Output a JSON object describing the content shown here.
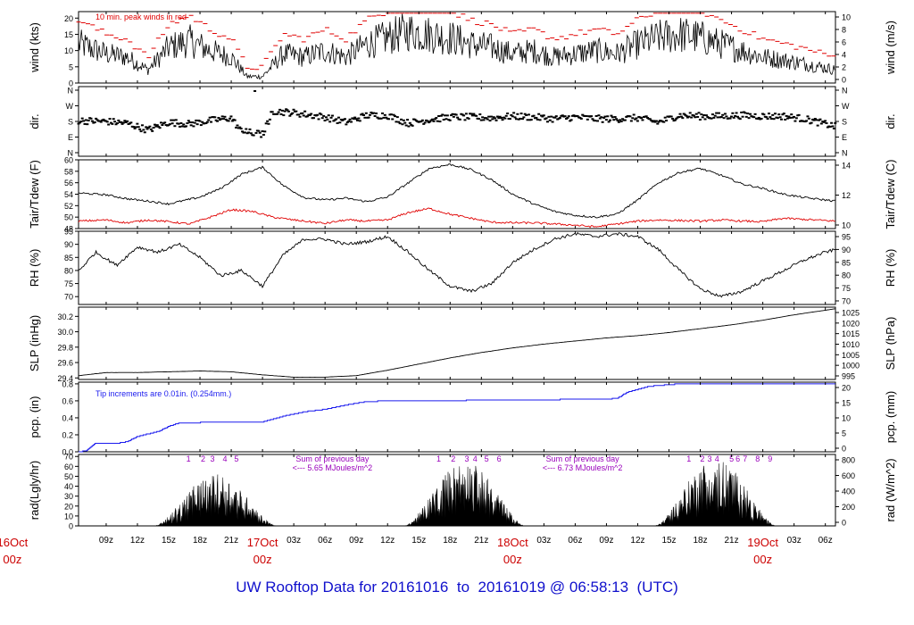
{
  "footer": {
    "prefix": "UW Rooftop Data for",
    "start": "20161016",
    "to": "to",
    "end": "20161019",
    "at": "@",
    "time": "06:58:13",
    "tz": "(UTC)"
  },
  "time_axis": {
    "hour_ticks": [
      "09z",
      "12z",
      "15z",
      "18z",
      "21z",
      "03z",
      "06z",
      "09z",
      "12z",
      "15z",
      "18z",
      "21z",
      "03z",
      "06z",
      "09z",
      "12z",
      "15z",
      "18z",
      "21z",
      "03z",
      "06z"
    ],
    "day_labels": [
      {
        "day": "16Oct",
        "hour": "00z"
      },
      {
        "day": "17Oct",
        "hour": "00z"
      },
      {
        "day": "18Oct",
        "hour": "00z"
      },
      {
        "day": "19Oct",
        "hour": "00z"
      }
    ],
    "x_start_hour": 6.35,
    "x_end_hour": 78.97
  },
  "chart_data": [
    {
      "type": "line",
      "name": "wind",
      "ylabel": "wind (kts)",
      "ylabel_right": "wind (m/s)",
      "ylim": [
        0,
        22
      ],
      "yticks": [
        0,
        5,
        10,
        15,
        20
      ],
      "right_ticks": [
        0,
        2,
        4,
        6,
        8,
        10
      ],
      "annotation": "10 min. peak winds in red",
      "colors": {
        "line": "#000000",
        "peak": "#e00000"
      },
      "x_hours": [
        6.4,
        9,
        11,
        13,
        15,
        17,
        19,
        21,
        22.5,
        24,
        26,
        28,
        30,
        32,
        34,
        36,
        38,
        40,
        42,
        44,
        46,
        48,
        50,
        52,
        54,
        56,
        58,
        60,
        62,
        64,
        66,
        68,
        70,
        72,
        74,
        76,
        79
      ],
      "values": [
        12,
        9,
        8,
        4,
        11,
        13,
        10,
        8,
        2,
        2,
        9,
        8,
        10,
        8,
        12,
        14,
        16,
        15,
        14,
        12,
        11,
        9,
        10,
        8,
        9,
        10,
        9,
        12,
        14,
        15,
        14,
        12,
        10,
        8,
        7,
        6,
        4
      ]
    },
    {
      "type": "scatter",
      "name": "dir",
      "ylabel": "dir.",
      "ylabel_right": "dir.",
      "ylim": [
        0,
        360
      ],
      "yticks": [
        "N",
        "W",
        "S",
        "E",
        "N"
      ],
      "right_ticks": [
        "N",
        "W",
        "S",
        "E",
        "N"
      ],
      "colors": {
        "points": "#000000"
      },
      "x_hours": [
        6.4,
        9,
        11,
        13,
        15,
        17,
        19,
        21,
        22,
        23,
        24,
        25,
        27,
        30,
        32,
        34,
        36,
        38,
        40,
        42,
        44,
        46,
        48,
        50,
        52,
        54,
        56,
        58,
        60,
        62,
        64,
        66,
        68,
        70,
        72,
        74,
        76,
        79
      ],
      "values": [
        185,
        180,
        170,
        130,
        175,
        165,
        185,
        200,
        120,
        115,
        105,
        240,
        230,
        205,
        175,
        215,
        215,
        170,
        190,
        205,
        205,
        200,
        210,
        205,
        195,
        205,
        195,
        195,
        200,
        175,
        215,
        210,
        210,
        215,
        210,
        210,
        195,
        150
      ]
    },
    {
      "type": "line",
      "name": "temp",
      "ylabel": "Tair/Tdew (F)",
      "ylabel_right": "Tair/Tdew (C)",
      "ylim": [
        48,
        60
      ],
      "yticks": [
        48,
        50,
        52,
        54,
        56,
        58,
        60
      ],
      "right_ticks": [
        10,
        12,
        14
      ],
      "series": [
        {
          "name": "Tair",
          "color": "#000000",
          "x_hours": [
            6.4,
            9,
            11,
            13,
            15,
            18,
            20,
            22,
            24,
            26,
            28,
            30,
            32,
            34,
            36,
            38,
            40,
            42,
            44,
            46,
            48,
            50,
            52,
            54,
            56,
            58,
            60,
            62,
            64,
            66,
            68,
            70,
            72,
            74,
            76,
            79
          ],
          "values": [
            54.2,
            53.9,
            53.2,
            52.8,
            52.3,
            53.5,
            55,
            57.5,
            58.7,
            55.5,
            53.4,
            53,
            53.3,
            52.7,
            53.5,
            56,
            58.5,
            59.2,
            58.3,
            56.5,
            54,
            52.3,
            51,
            50.3,
            50,
            50.5,
            53,
            56,
            57.8,
            58.5,
            57.3,
            55.8,
            55,
            54,
            53.4,
            52.8
          ]
        },
        {
          "name": "Tdew",
          "color": "#e00000",
          "x_hours": [
            6.4,
            9,
            11,
            13,
            15,
            17,
            19,
            21,
            23,
            25,
            27,
            30,
            32,
            34,
            36,
            38,
            40,
            42,
            44,
            46,
            48,
            50,
            52,
            54,
            56,
            58,
            60,
            62,
            64,
            66,
            68,
            70,
            72,
            74,
            76,
            79
          ],
          "values": [
            49.3,
            49.5,
            49,
            49.5,
            49.2,
            48.8,
            50,
            51.3,
            51,
            50,
            49.5,
            48.9,
            49.5,
            49.3,
            49.5,
            50.8,
            51.5,
            50.5,
            49.8,
            49.1,
            49,
            49,
            48.8,
            48.6,
            48.3,
            48.8,
            49.3,
            49.5,
            49.4,
            49.3,
            49.5,
            49.3,
            49.2,
            49.8,
            49.6,
            49.3
          ]
        }
      ]
    },
    {
      "type": "line",
      "name": "rh",
      "ylabel": "RH (%)",
      "ylabel_right": "RH (%)",
      "ylim": [
        67,
        95
      ],
      "yticks": [
        70,
        75,
        80,
        85,
        90,
        95
      ],
      "right_ticks": [
        70,
        75,
        80,
        85,
        90,
        95
      ],
      "colors": {
        "line": "#000000"
      },
      "x_hours": [
        6.4,
        8,
        10,
        12,
        14,
        16,
        18,
        20,
        22,
        24,
        26,
        28,
        30,
        32,
        34,
        36,
        38,
        40,
        42,
        44,
        46,
        48,
        50,
        52,
        54,
        56,
        58,
        60,
        62,
        64,
        66,
        68,
        70,
        72,
        74,
        76,
        78,
        79
      ],
      "values": [
        80,
        87,
        82,
        89,
        87,
        90,
        85,
        78,
        80,
        74,
        86,
        92,
        92,
        90,
        91,
        93,
        87,
        80,
        74,
        72,
        75,
        83,
        88,
        92,
        94,
        93,
        94,
        93,
        88,
        80,
        73,
        70,
        72,
        76,
        80,
        84,
        87,
        88
      ]
    },
    {
      "type": "line",
      "name": "slp",
      "ylabel": "SLP (inHg)",
      "ylabel_right": "SLP (hPa)",
      "ylim": [
        29.38,
        30.32
      ],
      "yticks": [
        29.4,
        29.6,
        29.8,
        30.0,
        30.2
      ],
      "right_ticks": [
        995,
        1000,
        1005,
        1010,
        1015,
        1020,
        1025
      ],
      "colors": {
        "line": "#000000"
      },
      "x_hours": [
        6.4,
        9,
        12,
        15,
        18,
        21,
        24,
        27,
        30,
        33,
        36,
        39,
        42,
        45,
        48,
        51,
        54,
        57,
        60,
        63,
        66,
        69,
        72,
        75,
        79
      ],
      "values": [
        29.43,
        29.47,
        29.47,
        29.48,
        29.49,
        29.48,
        29.44,
        29.41,
        29.41,
        29.43,
        29.5,
        29.58,
        29.66,
        29.73,
        29.79,
        29.84,
        29.88,
        29.92,
        29.95,
        29.99,
        30.04,
        30.09,
        30.15,
        30.22,
        30.3
      ]
    },
    {
      "type": "line",
      "name": "pcp",
      "ylabel": "pcp. (in)",
      "ylabel_right": "pcp. (mm)",
      "ylim": [
        0,
        0.82
      ],
      "yticks": [
        0.0,
        0.2,
        0.4,
        0.6,
        0.8
      ],
      "right_ticks": [
        0,
        5,
        10,
        15,
        20
      ],
      "annotation": "Tip increments are 0.01in. (0.254mm.)",
      "colors": {
        "line": "#1a1aee"
      },
      "x_hours": [
        6.4,
        7,
        8,
        10,
        11,
        12,
        14,
        15,
        16,
        20,
        24,
        26,
        28,
        30,
        32,
        34,
        36,
        38,
        40,
        42,
        45,
        50,
        55,
        57,
        58,
        59,
        61,
        64,
        68,
        72,
        79
      ],
      "values": [
        0,
        0.01,
        0.1,
        0.1,
        0.12,
        0.18,
        0.24,
        0.3,
        0.34,
        0.35,
        0.35,
        0.42,
        0.47,
        0.5,
        0.55,
        0.59,
        0.6,
        0.6,
        0.6,
        0.6,
        0.61,
        0.61,
        0.62,
        0.62,
        0.63,
        0.7,
        0.77,
        0.8,
        0.8,
        0.8,
        0.8
      ]
    },
    {
      "type": "area",
      "name": "rad",
      "ylabel": "rad(Lgly/hr)",
      "ylabel_right": "rad (W/m^2)",
      "ylim": [
        0,
        72
      ],
      "yticks": [
        0,
        10,
        20,
        30,
        40,
        50,
        60,
        70
      ],
      "right_ticks": [
        0,
        200,
        400,
        600,
        800
      ],
      "colors": {
        "fill": "#000000",
        "markers": "#9900bb"
      },
      "days": [
        {
          "start": 13.6,
          "end": 25.4,
          "peak": 52
        },
        {
          "start": 37.6,
          "end": 49.2,
          "peak": 65
        },
        {
          "start": 61.6,
          "end": 73.3,
          "peak": 68
        }
      ],
      "hour_markers": [
        {
          "labels": [
            "1",
            "2",
            "3",
            "4",
            "5"
          ],
          "x_hours": [
            16.9,
            18.3,
            19.2,
            20.4,
            21.5
          ]
        },
        {
          "labels": [
            "1",
            "2",
            "3",
            "4",
            "5",
            "6"
          ],
          "x_hours": [
            40.9,
            42.3,
            43.6,
            44.4,
            45.5,
            46.7
          ]
        },
        {
          "labels": [
            "1",
            "2",
            "3",
            "4",
            "5",
            "6",
            "7",
            "8",
            "9"
          ],
          "x_hours": [
            64.9,
            66.2,
            66.9,
            67.6,
            69.0,
            69.6,
            70.3,
            71.5,
            72.7
          ]
        }
      ],
      "daily_summaries": [
        {
          "title": "Sum of previous day",
          "value": "<--- 5.65 MJoules/m^2",
          "x_hour": 30.7
        },
        {
          "title": "Sum of previous day",
          "value": "<--- 6.73 MJoules/m^2",
          "x_hour": 54.7
        }
      ]
    }
  ]
}
